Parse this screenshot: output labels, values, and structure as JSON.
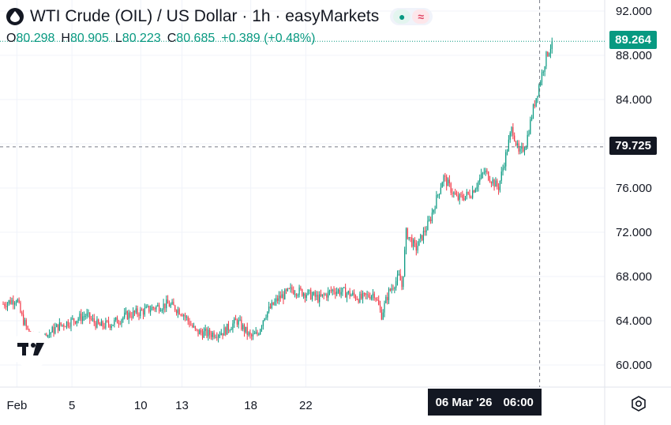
{
  "header": {
    "title": "WTI Crude (OIL) / US Dollar · 1h · easyMarkets",
    "badge_left_icon": "market-open-dot-icon",
    "badge_right_icon": "approx-icon"
  },
  "ohlc": {
    "o_label": "O",
    "o_value": "80.298",
    "h_label": "H",
    "h_value": "80.905",
    "l_label": "L",
    "l_value": "80.223",
    "c_label": "C",
    "c_value": "80.685",
    "change": "+0.389 (+0.48%)"
  },
  "last_price_label": "89.264",
  "crosshair_price_label": "79.725",
  "crosshair_time": {
    "date": "06 Mar '26",
    "time": "06:00"
  },
  "colors": {
    "up": "#089981",
    "down": "#f23645",
    "text": "#131722",
    "grid": "#f0f3fa"
  },
  "chart_data": {
    "type": "candlestick",
    "ylim": [
      58.0,
      93.0
    ],
    "y_ticks": [
      "92.000",
      "88.000",
      "84.000",
      "80.000",
      "76.000",
      "72.000",
      "68.000",
      "64.000",
      "60.000"
    ],
    "y_tick_values": [
      92,
      88,
      84,
      80,
      76,
      72,
      68,
      64,
      60
    ],
    "x_ticks": [
      "Feb",
      "5",
      "10",
      "13",
      "18",
      "22"
    ],
    "x_tick_days": [
      0,
      4,
      9,
      12,
      17,
      21
    ],
    "x_day_range": [
      -1.0,
      42.5
    ],
    "path_days": [
      -1.0,
      0.0,
      0.3,
      1.0,
      1.5,
      2.0,
      3.0,
      4.0,
      5.0,
      6.0,
      7.0,
      8.0,
      9.0,
      10.0,
      11.0,
      12.0,
      13.0,
      14.0,
      15.0,
      16.0,
      17.0,
      17.5,
      18.0,
      19.0,
      20.0,
      21.0,
      22.0,
      23.0,
      24.0,
      25.0,
      26.0,
      26.5,
      27.0,
      27.5,
      27.8,
      28.0,
      28.3,
      29.0,
      30.0,
      31.0,
      32.0,
      33.0,
      34.0,
      35.0,
      36.0,
      36.5,
      37.0,
      37.5,
      38.0,
      38.5,
      39.0
    ],
    "path_values": [
      65.5,
      66.0,
      64.5,
      62.5,
      62.0,
      62.5,
      63.5,
      64.0,
      64.5,
      63.5,
      63.8,
      64.5,
      64.8,
      65.2,
      65.5,
      64.8,
      63.0,
      62.8,
      63.0,
      64.0,
      62.5,
      62.8,
      64.5,
      66.0,
      66.8,
      66.5,
      66.0,
      66.8,
      66.5,
      66.0,
      66.5,
      64.5,
      66.5,
      67.5,
      68.0,
      67.0,
      72.0,
      70.5,
      73.0,
      77.0,
      75.0,
      75.5,
      77.5,
      76.0,
      81.5,
      79.0,
      80.0,
      83.0,
      85.5,
      88.0,
      89.3
    ],
    "last_price": 89.264,
    "crosshair_price": 79.725,
    "crosshair_day": 38.0
  }
}
